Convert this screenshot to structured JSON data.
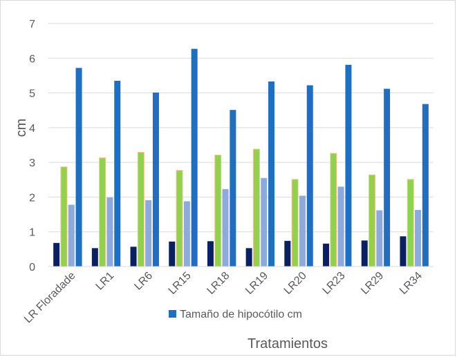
{
  "chart_data": {
    "type": "bar",
    "title": "",
    "xlabel": "Tratamientos",
    "ylabel": "cm",
    "ylim": [
      0,
      7
    ],
    "yticks": [
      "0",
      "1",
      "2",
      "3",
      "4",
      "5",
      "6",
      "7"
    ],
    "grid": true,
    "legend_position": "bottom",
    "categories": [
      "LR Floradade",
      "LR1",
      "LR6",
      "LR15",
      "LR18",
      "LR19",
      "LR20",
      "LR23",
      "LR29",
      "LR34"
    ],
    "series": [
      {
        "values": [
          0.68,
          0.53,
          0.57,
          0.72,
          0.73,
          0.53,
          0.74,
          0.66,
          0.75,
          0.87
        ],
        "color": "#0b2060"
      },
      {
        "values": [
          2.87,
          3.13,
          3.29,
          2.77,
          3.21,
          3.38,
          2.51,
          3.26,
          2.64,
          2.51
        ],
        "color": "#92d050",
        "edge": "#f4c58a"
      },
      {
        "values": [
          1.78,
          1.99,
          1.91,
          1.88,
          2.23,
          2.55,
          2.04,
          2.3,
          1.62,
          1.63
        ],
        "color": "#8eaadb"
      },
      {
        "name": "Tamaño de hipocótilo cm",
        "values": [
          5.72,
          5.35,
          5.01,
          6.27,
          4.51,
          5.33,
          5.22,
          5.81,
          5.12,
          4.68
        ],
        "color": "#1f6ebf"
      }
    ]
  }
}
